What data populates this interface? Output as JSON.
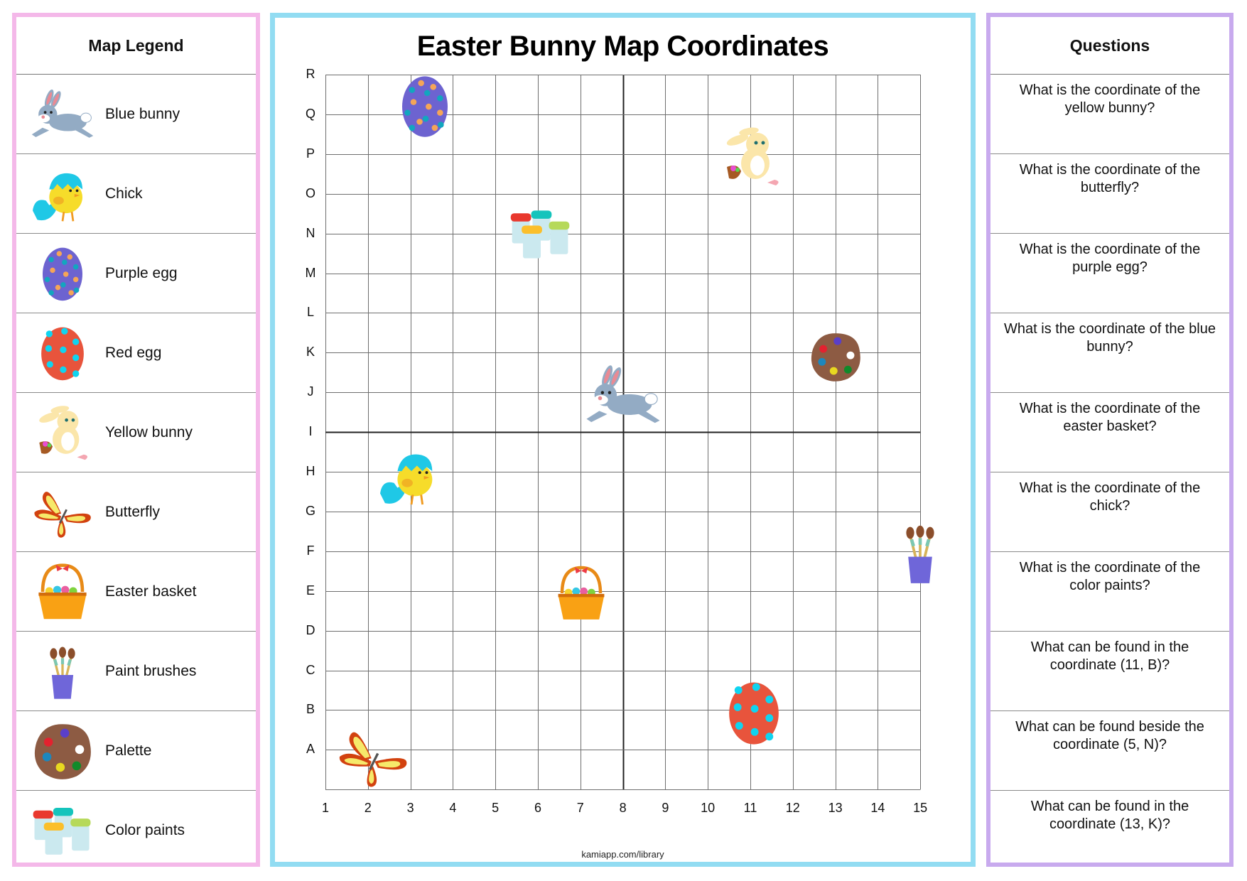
{
  "colors": {
    "legend_border": "#f4b8e9",
    "map_border": "#92dcf2",
    "questions_border": "#c8aaee",
    "grid_line": "#6e6e6e",
    "axis_line": "#222222"
  },
  "legend": {
    "title": "Map Legend",
    "items": [
      {
        "label": "Blue bunny",
        "icon": "blue-bunny-icon"
      },
      {
        "label": "Chick",
        "icon": "chick-icon"
      },
      {
        "label": "Purple egg",
        "icon": "purple-egg-icon"
      },
      {
        "label": "Red egg",
        "icon": "red-egg-icon"
      },
      {
        "label": "Yellow bunny",
        "icon": "yellow-bunny-icon"
      },
      {
        "label": "Butterfly",
        "icon": "butterfly-icon"
      },
      {
        "label": "Easter basket",
        "icon": "easter-basket-icon"
      },
      {
        "label": "Paint brushes",
        "icon": "paint-brushes-icon"
      },
      {
        "label": "Palette",
        "icon": "palette-icon"
      },
      {
        "label": "Color paints",
        "icon": "color-paints-icon"
      }
    ]
  },
  "map": {
    "title": "Easter Bunny Map Coordinates",
    "row_labels": [
      "R",
      "Q",
      "P",
      "O",
      "N",
      "M",
      "L",
      "K",
      "J",
      "I",
      "H",
      "G",
      "F",
      "E",
      "D",
      "C",
      "B",
      "A"
    ],
    "col_labels": [
      "1",
      "2",
      "3",
      "4",
      "5",
      "6",
      "7",
      "8",
      "9",
      "10",
      "11",
      "12",
      "13",
      "14",
      "15"
    ],
    "axis_column": "8",
    "axis_row": "I",
    "items": [
      {
        "name": "Purple egg",
        "col": 3,
        "row": "Q"
      },
      {
        "name": "Yellow bunny",
        "col": 11,
        "row": "P"
      },
      {
        "name": "Color paints",
        "col": 6,
        "row": "N"
      },
      {
        "name": "Palette",
        "col": 13,
        "row": "K"
      },
      {
        "name": "Blue bunny",
        "col": 8,
        "row": "J"
      },
      {
        "name": "Chick",
        "col": 3,
        "row": "H"
      },
      {
        "name": "Paint brushes",
        "col": 15,
        "row": "F"
      },
      {
        "name": "Easter basket",
        "col": 7,
        "row": "E"
      },
      {
        "name": "Red egg",
        "col": 11,
        "row": "B"
      },
      {
        "name": "Butterfly",
        "col": 2,
        "row": "A"
      }
    ],
    "footer": "kamiapp.com/library"
  },
  "questions": {
    "title": "Questions",
    "items": [
      "What is the coordinate of the yellow bunny?",
      "What is the coordinate of the butterfly?",
      "What is the coordinate of the purple egg?",
      "What is the coordinate of the blue bunny?",
      "What is the coordinate of the easter basket?",
      "What is the coordinate of the chick?",
      "What is the coordinate of the color paints?",
      "What can be found in the coordinate (11, B)?",
      "What can be found beside the coordinate (5, N)?",
      "What can be found in the coordinate (13, K)?"
    ]
  }
}
